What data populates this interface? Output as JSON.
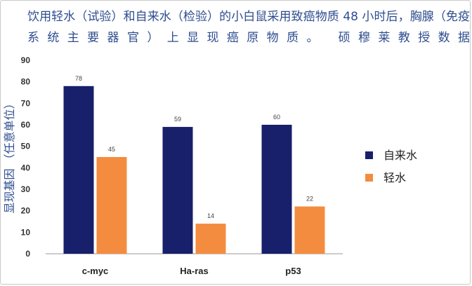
{
  "chart_data": {
    "type": "bar",
    "title": "饮用轻水（试验）和自来水（检验）的小白鼠采用致癌物质 48 小时后，胸腺（免疫系统主要器官）上显现癌原物质。 硕穆莱教授数据",
    "xlabel": "",
    "ylabel": "显现基因 （任意单位）",
    "categories": [
      "c-myc",
      "Ha-ras",
      "p53"
    ],
    "series": [
      {
        "name": "自来水",
        "values": [
          78,
          59,
          60
        ],
        "color": "#18206b"
      },
      {
        "name": "轻水",
        "values": [
          45,
          14,
          22
        ],
        "color": "#f38c3f"
      }
    ],
    "ylim": [
      0,
      90
    ],
    "yticks": [
      0,
      10,
      20,
      30,
      40,
      50,
      60,
      70,
      80,
      90
    ],
    "grid": false,
    "legend": "right"
  }
}
